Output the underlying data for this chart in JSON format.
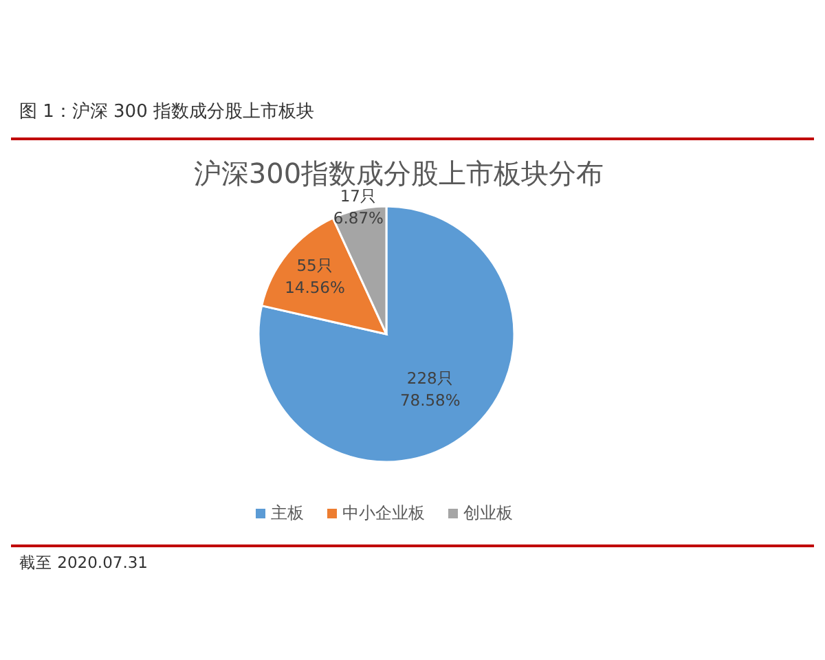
{
  "chart_data": {
    "type": "pie",
    "title": "图 1：沪深 300 指数成分股上市板块",
    "subtitle": "沪深300指数成分股上市板块分布",
    "categories": [
      "主板",
      "中小企业板",
      "创业板"
    ],
    "values": [
      78.58,
      14.56,
      6.87
    ],
    "value_labels": [
      [
        "228只",
        "78.58%"
      ],
      [
        "55只",
        "14.56%"
      ],
      [
        "17只",
        "6.87%"
      ]
    ],
    "colors": [
      "#5b9bd5",
      "#ed7d31",
      "#a5a5a5"
    ],
    "legend": "bottom",
    "annotations": [
      "截至 2020.07.31"
    ]
  }
}
